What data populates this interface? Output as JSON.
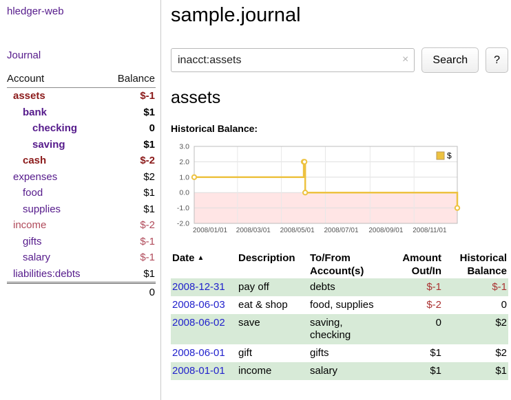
{
  "colors": {
    "sidebar_link": "#551a8b",
    "negative_bold": "#8b1a1a",
    "negative_soft": "#b04a5a",
    "table_negative": "#aa3333",
    "date_link": "#2222cc",
    "row_highlight": "#d7ead7",
    "chart_line": "#edc240",
    "chart_negative_region": "#ffe5e5"
  },
  "app": {
    "title": "hledger-web"
  },
  "sidebar": {
    "journal_link": "Journal",
    "accounts": {
      "headers": {
        "account": "Account",
        "balance": "Balance"
      },
      "rows": [
        {
          "name": "assets",
          "indent": 1,
          "bold": true,
          "name_color": "#8b1a1a",
          "balance": "$-1",
          "balance_color": "#8b1a1a"
        },
        {
          "name": "bank",
          "indent": 2,
          "bold": true,
          "name_color": "#551a8b",
          "balance": "$1",
          "balance_color": "#000000"
        },
        {
          "name": "checking",
          "indent": 3,
          "bold": true,
          "name_color": "#551a8b",
          "balance": "0",
          "balance_color": "#000000"
        },
        {
          "name": "saving",
          "indent": 3,
          "bold": true,
          "name_color": "#551a8b",
          "balance": "$1",
          "balance_color": "#000000"
        },
        {
          "name": "cash",
          "indent": 2,
          "bold": true,
          "name_color": "#8b1a1a",
          "balance": "$-2",
          "balance_color": "#8b1a1a"
        },
        {
          "name": "expenses",
          "indent": 1,
          "bold": false,
          "name_color": "#551a8b",
          "balance": "$2",
          "balance_color": "#000000"
        },
        {
          "name": "food",
          "indent": 2,
          "bold": false,
          "name_color": "#551a8b",
          "balance": "$1",
          "balance_color": "#000000"
        },
        {
          "name": "supplies",
          "indent": 2,
          "bold": false,
          "name_color": "#551a8b",
          "balance": "$1",
          "balance_color": "#000000"
        },
        {
          "name": "income",
          "indent": 1,
          "bold": false,
          "name_color": "#b04a5a",
          "balance": "$-2",
          "balance_color": "#b04a5a"
        },
        {
          "name": "gifts",
          "indent": 2,
          "bold": false,
          "name_color": "#551a8b",
          "balance": "$-1",
          "balance_color": "#b04a5a"
        },
        {
          "name": "salary",
          "indent": 2,
          "bold": false,
          "name_color": "#551a8b",
          "balance": "$-1",
          "balance_color": "#b04a5a"
        },
        {
          "name": "liabilities:debts",
          "indent": 1,
          "bold": false,
          "name_color": "#551a8b",
          "balance": "$1",
          "balance_color": "#000000"
        }
      ],
      "total": "0"
    }
  },
  "main": {
    "title": "sample.journal",
    "search": {
      "value": "inacct:assets",
      "clear_icon": "×",
      "search_button": "Search",
      "help_button": "?"
    },
    "account_heading": "assets"
  },
  "chart_data": {
    "type": "line",
    "step": true,
    "title": "Historical Balance:",
    "legend": {
      "label": "$",
      "position": "top-right",
      "color": "#edc240"
    },
    "ylim": [
      -2,
      3
    ],
    "yticks": [
      "3.0",
      "2.0",
      "1.0",
      "0.0",
      "-1.0",
      "-2.0"
    ],
    "xticks": [
      "2008/01/01",
      "2008/03/01",
      "2008/05/01",
      "2008/07/01",
      "2008/09/01",
      "2008/11/01"
    ],
    "x_range": [
      "2008-01-01",
      "2008-12-31"
    ],
    "grid": true,
    "series": [
      {
        "name": "$",
        "color": "#edc240",
        "points": [
          {
            "date": "2008-01-01",
            "value": 1
          },
          {
            "date": "2008-06-01",
            "value": 2
          },
          {
            "date": "2008-06-02",
            "value": 2
          },
          {
            "date": "2008-06-03",
            "value": 0
          },
          {
            "date": "2008-12-31",
            "value": -1
          }
        ]
      }
    ],
    "negative_region": {
      "from": 0,
      "to": -2,
      "color": "#ffe5e5"
    }
  },
  "register": {
    "headers": {
      "date": "Date",
      "sort_icon": "▲",
      "description": "Description",
      "accounts_line1": "To/From",
      "accounts_line2": "Account(s)",
      "amount_line1": "Amount",
      "amount_line2": "Out/In",
      "balance_line1": "Historical",
      "balance_line2": "Balance"
    },
    "rows": [
      {
        "date": "2008-12-31",
        "description": "pay off",
        "accounts": "debts",
        "amount": "$-1",
        "amount_negative": true,
        "balance": "$-1",
        "balance_negative": true,
        "highlight": true
      },
      {
        "date": "2008-06-03",
        "description": "eat & shop",
        "accounts": "food, supplies",
        "amount": "$-2",
        "amount_negative": true,
        "balance": "0",
        "balance_negative": false,
        "highlight": false
      },
      {
        "date": "2008-06-02",
        "description": "save",
        "accounts": "saving, checking",
        "amount": "0",
        "amount_negative": false,
        "balance": "$2",
        "balance_negative": false,
        "highlight": true
      },
      {
        "date": "2008-06-01",
        "description": "gift",
        "accounts": "gifts",
        "amount": "$1",
        "amount_negative": false,
        "balance": "$2",
        "balance_negative": false,
        "highlight": false
      },
      {
        "date": "2008-01-01",
        "description": "income",
        "accounts": "salary",
        "amount": "$1",
        "amount_negative": false,
        "balance": "$1",
        "balance_negative": false,
        "highlight": true
      }
    ]
  }
}
